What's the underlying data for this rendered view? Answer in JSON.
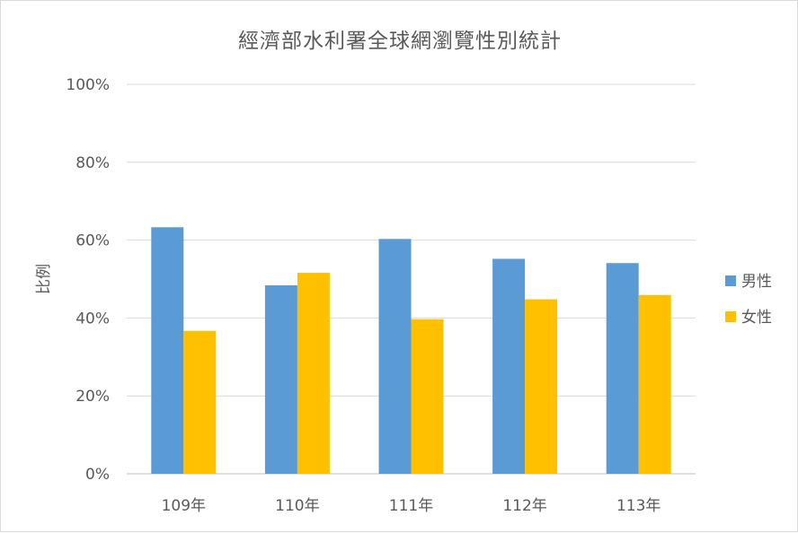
{
  "chart_data": {
    "type": "bar",
    "title": "經濟部水利署全球網瀏覽性別統計",
    "xlabel": "",
    "ylabel": "比例",
    "categories": [
      "109年",
      "110年",
      "111年",
      "112年",
      "113年"
    ],
    "series": [
      {
        "name": "男性",
        "color": "#5b9bd5",
        "values": [
          63.3,
          48.4,
          60.3,
          55.2,
          54.1
        ]
      },
      {
        "name": "女性",
        "color": "#ffc000",
        "values": [
          36.7,
          51.6,
          39.7,
          44.8,
          45.9
        ]
      }
    ],
    "ylim": [
      0,
      100
    ],
    "yticks": [
      "0%",
      "20%",
      "40%",
      "60%",
      "80%",
      "100%"
    ],
    "grid": true,
    "legend_position": "right"
  }
}
